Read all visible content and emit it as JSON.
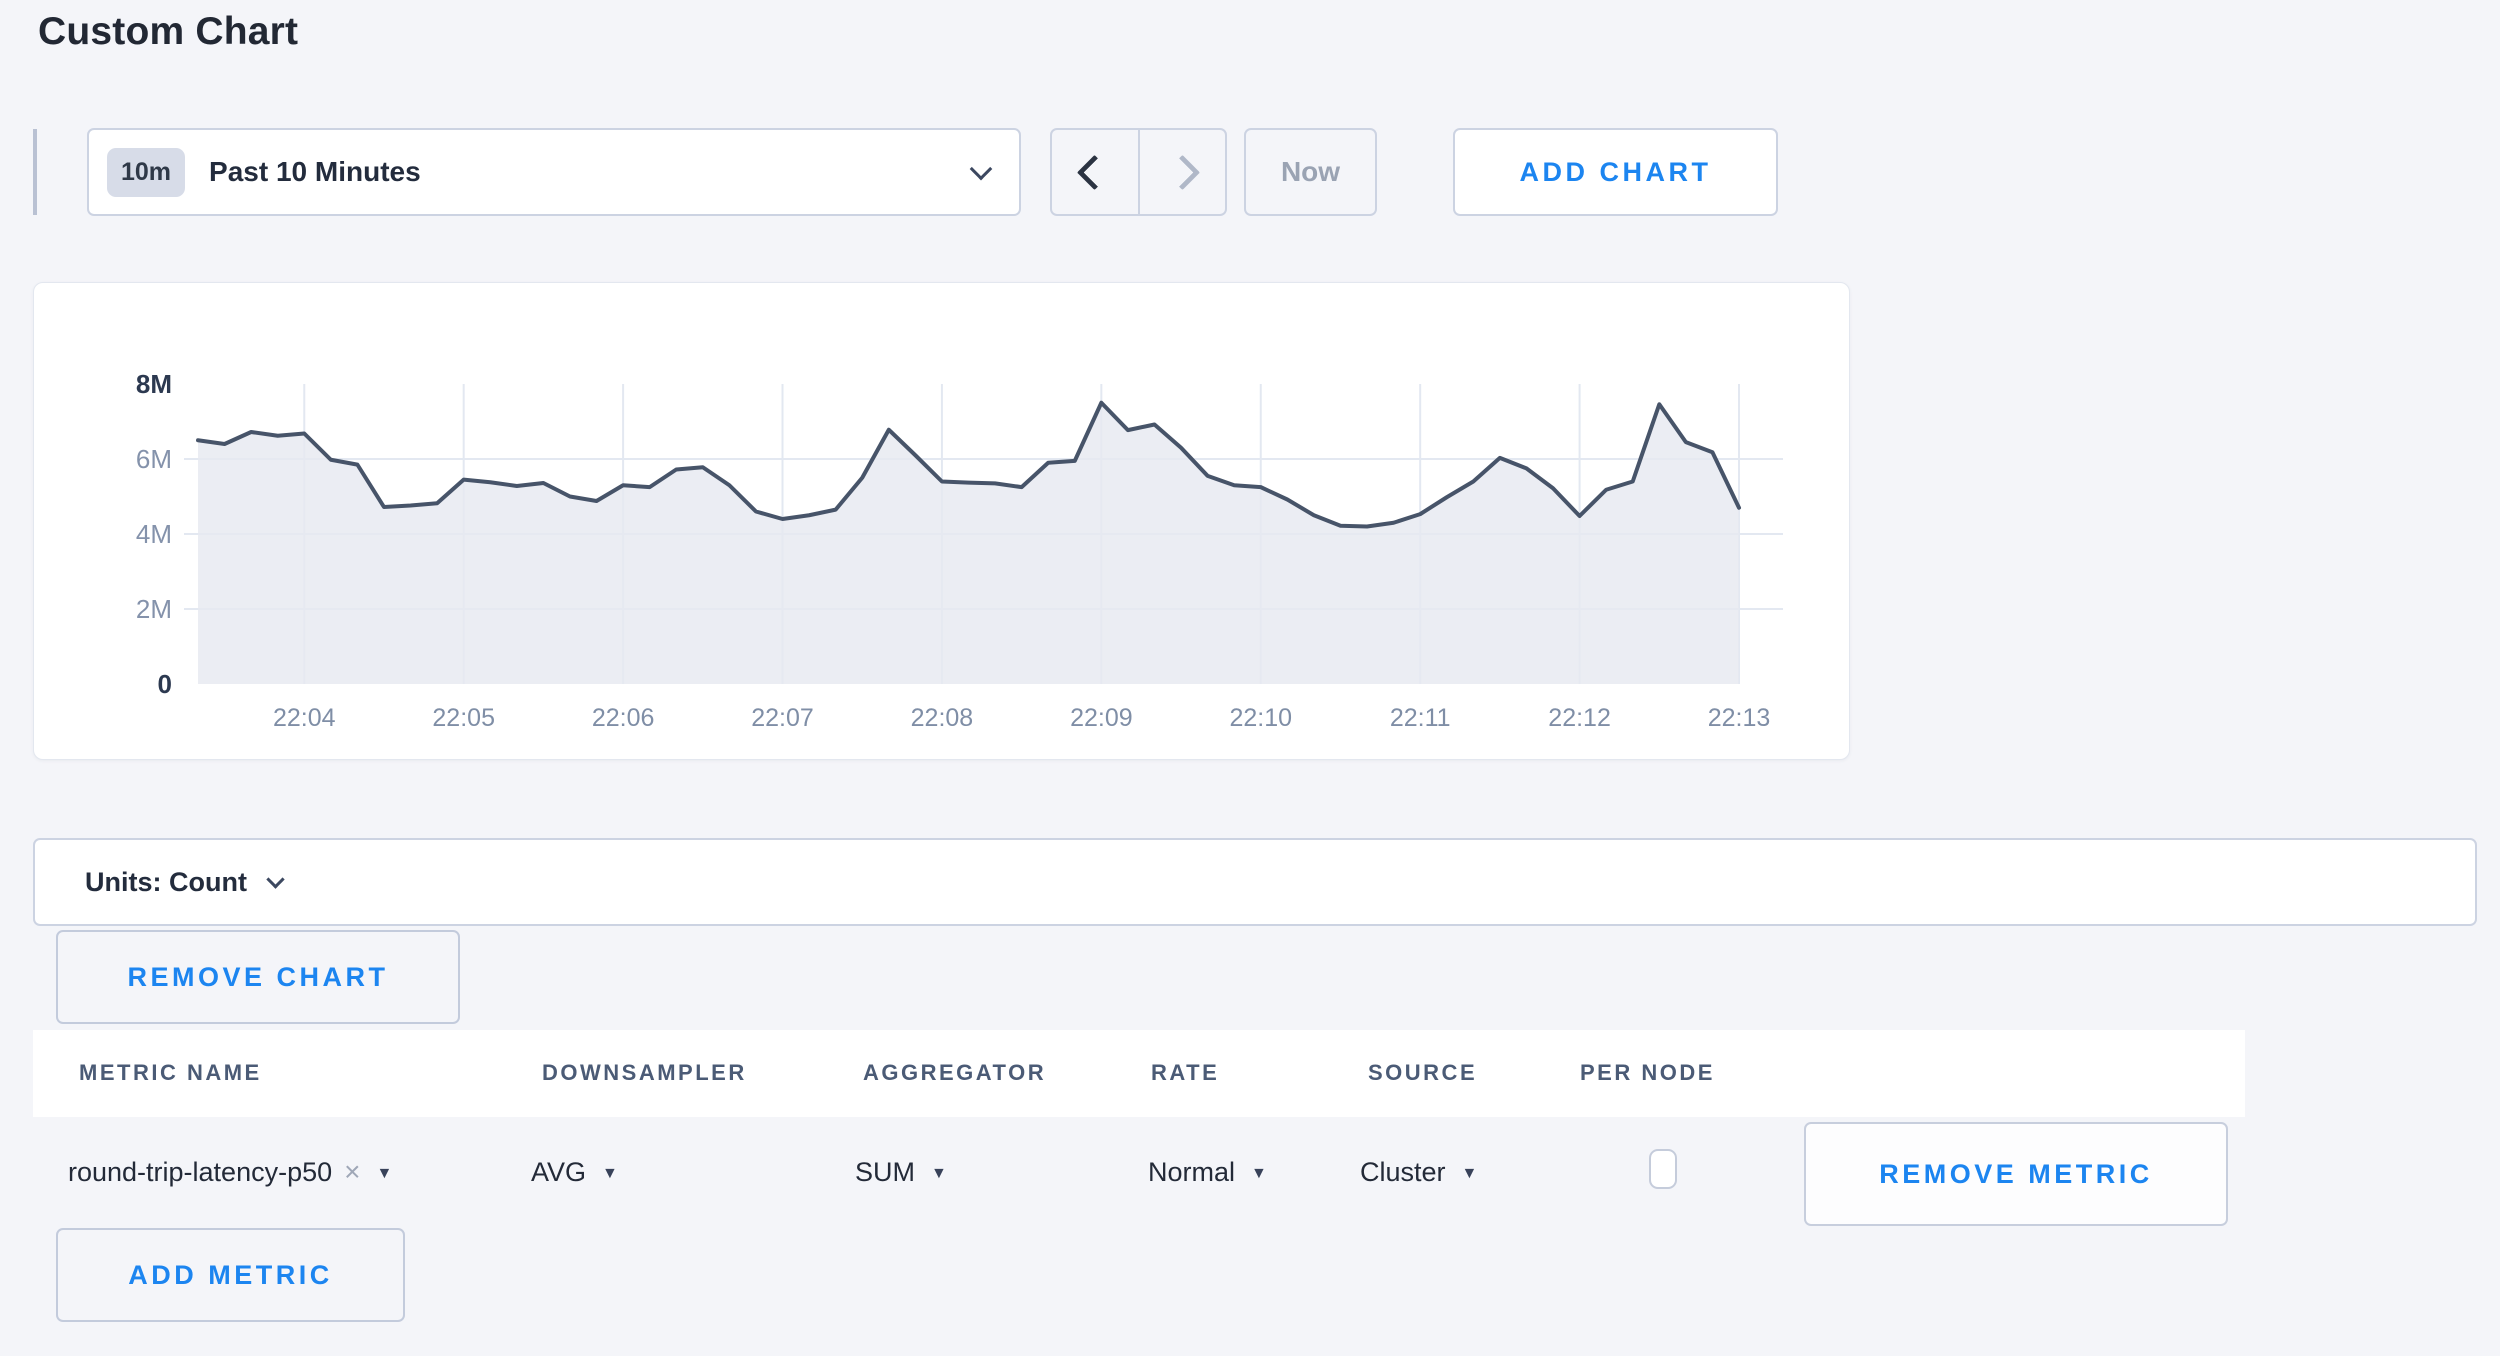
{
  "page": {
    "title": "Custom Chart"
  },
  "theme": {
    "page_bg": "#f4f5f9",
    "accent_blue": "#1c85f0",
    "text_dark": "#232a38",
    "header_slate": "#4b5b76",
    "disabled_gray": "#9aa3b3",
    "line_color": "#475469",
    "area_fill": "#e9ecf2",
    "grid_color": "#e3e8f1"
  },
  "toolbar": {
    "timescale_badge": "10m",
    "timescale_label": "Past 10 Minutes",
    "now_label": "Now",
    "add_chart_label": "ADD CHART"
  },
  "icons": {
    "timescale_chevron": "chevron-down",
    "prev_arrow": "chevron-left",
    "next_arrow": "chevron-right",
    "units_chevron": "chevron-down",
    "dropdown_caret": "▼",
    "clear_metric": "×"
  },
  "chart_data": {
    "type": "area",
    "title": "",
    "xlabel": "",
    "ylabel": "Count",
    "ylim": [
      0,
      8000000
    ],
    "grid": true,
    "legend": false,
    "y_ticks": [
      {
        "value": 0,
        "label": "0"
      },
      {
        "value": 2000000,
        "label": "2M"
      },
      {
        "value": 4000000,
        "label": "4M"
      },
      {
        "value": 6000000,
        "label": "6M"
      },
      {
        "value": 8000000,
        "label": "8M"
      }
    ],
    "x_ticks": [
      "22:04",
      "22:05",
      "22:06",
      "22:07",
      "22:08",
      "22:09",
      "22:10",
      "22:11",
      "22:12",
      "22:13"
    ],
    "x_tick_point_indices": [
      4,
      10,
      16,
      22,
      28,
      34,
      40,
      46,
      52,
      58
    ],
    "sample_interval_seconds": 10,
    "series_name": "round-trip-latency-p50 (SUM of AVG, Cluster)",
    "values_millions": [
      6.5,
      6.4,
      6.72,
      6.62,
      6.68,
      5.98,
      5.85,
      4.72,
      4.76,
      4.82,
      5.45,
      5.38,
      5.28,
      5.36,
      5.0,
      4.88,
      5.3,
      5.25,
      5.72,
      5.78,
      5.3,
      4.6,
      4.4,
      4.5,
      4.65,
      5.5,
      6.78,
      6.1,
      5.4,
      5.37,
      5.35,
      5.25,
      5.9,
      5.95,
      7.5,
      6.77,
      6.92,
      6.3,
      5.55,
      5.3,
      5.25,
      4.92,
      4.5,
      4.22,
      4.2,
      4.3,
      4.53,
      4.98,
      5.4,
      6.03,
      5.75,
      5.22,
      4.48,
      5.18,
      5.4,
      7.46,
      6.45,
      6.18,
      4.7
    ]
  },
  "units_bar": {
    "label": "Units: Count"
  },
  "chart_actions": {
    "remove_chart_label": "REMOVE CHART",
    "add_metric_label": "ADD METRIC"
  },
  "metrics_table": {
    "headers": [
      "METRIC NAME",
      "DOWNSAMPLER",
      "AGGREGATOR",
      "RATE",
      "SOURCE",
      "PER NODE"
    ],
    "rows": [
      {
        "metric_name": "round-trip-latency-p50",
        "downsampler": "AVG",
        "aggregator": "SUM",
        "rate": "Normal",
        "source": "Cluster",
        "per_node_checked": false,
        "remove_label": "REMOVE METRIC"
      }
    ]
  }
}
